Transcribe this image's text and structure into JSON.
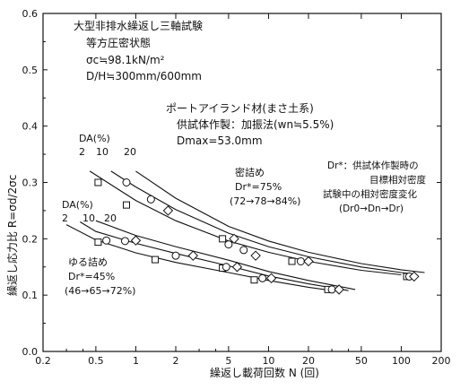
{
  "chart_data": {
    "type": "scatter",
    "x_scale": "log",
    "xlim": [
      0.2,
      200
    ],
    "ylim": [
      0.0,
      0.6
    ],
    "xlabel": "繰返し載荷回数 N (回)",
    "ylabel": "繰返し応力比 R=σd/2σc",
    "x_ticks": [
      "0.2",
      "0.5",
      "1",
      "2",
      "5",
      "10",
      "20",
      "50",
      "100",
      "200"
    ],
    "y_ticks": [
      "0.0",
      "0.1",
      "0.2",
      "0.3",
      "0.4",
      "0.5",
      "0.6"
    ],
    "annotations": {
      "title": "大型非排水繰返し三軸試験",
      "condition": "等方圧密状態",
      "sigma_c": "σc≒98.1kN/m²",
      "dh": "D/H≒300mm/600mm",
      "material": "ポートアイランド材(まさ土系)",
      "prep": "供試体作製：加振法(wn≒5.5%)",
      "dmax": "Dmax=53.0mm",
      "dense_title": "密詰め",
      "dense_dr": "Dr*=75%",
      "dense_range": "(72→78→84%)",
      "loose_title": "ゆる詰め",
      "loose_dr": "Dr*=45%",
      "loose_range": "(46→65→72%)",
      "note1": "Dr*：供試体作製時の",
      "note2": "目標相対密度",
      "note3": "試験中の相対密度変化",
      "note4": "(Dr0→Dn→Dr)",
      "da_upper": "DA(%)",
      "da_lower": "DA(%)",
      "da_upper_vals": [
        "2",
        "10",
        "20"
      ],
      "da_lower_vals": [
        "2",
        "10",
        "20"
      ]
    },
    "series": [
      {
        "marker": "square",
        "points": [
          [
            0.52,
            0.3
          ],
          [
            0.85,
            0.26
          ],
          [
            4.5,
            0.2
          ],
          [
            15.0,
            0.16
          ],
          [
            110.0,
            0.133
          ]
        ]
      },
      {
        "marker": "circle",
        "points": [
          [
            0.85,
            0.3
          ],
          [
            1.3,
            0.27
          ],
          [
            5.0,
            0.19
          ],
          [
            6.5,
            0.18
          ],
          [
            17.5,
            0.16
          ],
          [
            115.0,
            0.133
          ]
        ]
      },
      {
        "marker": "diamond",
        "points": [
          [
            1.75,
            0.25
          ],
          [
            5.5,
            0.2
          ],
          [
            8.0,
            0.17
          ],
          [
            20.0,
            0.16
          ],
          [
            125.0,
            0.133
          ]
        ]
      },
      {
        "marker": "square",
        "points": [
          [
            0.52,
            0.194
          ],
          [
            1.4,
            0.163
          ],
          [
            4.5,
            0.148
          ],
          [
            7.8,
            0.127
          ],
          [
            28.0,
            0.11
          ]
        ]
      },
      {
        "marker": "circle",
        "points": [
          [
            0.6,
            0.197
          ],
          [
            0.83,
            0.196
          ],
          [
            2.0,
            0.17
          ],
          [
            4.8,
            0.15
          ],
          [
            9.0,
            0.13
          ],
          [
            30.0,
            0.11
          ]
        ]
      },
      {
        "marker": "diamond",
        "points": [
          [
            1.0,
            0.197
          ],
          [
            2.7,
            0.17
          ],
          [
            5.8,
            0.15
          ],
          [
            10.5,
            0.13
          ],
          [
            34.0,
            0.11
          ]
        ]
      }
    ],
    "curves": [
      {
        "group": "dense",
        "points": [
          [
            0.45,
            0.32
          ],
          [
            1,
            0.268
          ],
          [
            2,
            0.232
          ],
          [
            5,
            0.196
          ],
          [
            10,
            0.176
          ],
          [
            20,
            0.16
          ],
          [
            50,
            0.144
          ],
          [
            100,
            0.136
          ]
        ]
      },
      {
        "group": "dense",
        "points": [
          [
            0.65,
            0.32
          ],
          [
            1,
            0.292
          ],
          [
            2,
            0.252
          ],
          [
            5,
            0.21
          ],
          [
            10,
            0.186
          ],
          [
            20,
            0.168
          ],
          [
            50,
            0.15
          ],
          [
            100,
            0.14
          ],
          [
            130,
            0.137
          ]
        ]
      },
      {
        "group": "dense",
        "points": [
          [
            1.0,
            0.32
          ],
          [
            2,
            0.272
          ],
          [
            5,
            0.222
          ],
          [
            10,
            0.196
          ],
          [
            20,
            0.176
          ],
          [
            50,
            0.156
          ],
          [
            100,
            0.145
          ],
          [
            150,
            0.14
          ]
        ]
      },
      {
        "group": "loose",
        "points": [
          [
            0.3,
            0.225
          ],
          [
            0.5,
            0.198
          ],
          [
            1,
            0.175
          ],
          [
            2,
            0.158
          ],
          [
            5,
            0.14
          ],
          [
            10,
            0.126
          ],
          [
            20,
            0.114
          ],
          [
            30,
            0.108
          ]
        ]
      },
      {
        "group": "loose",
        "points": [
          [
            0.38,
            0.23
          ],
          [
            0.5,
            0.213
          ],
          [
            1,
            0.192
          ],
          [
            2,
            0.174
          ],
          [
            5,
            0.152
          ],
          [
            10,
            0.134
          ],
          [
            20,
            0.12
          ],
          [
            40,
            0.108
          ]
        ]
      },
      {
        "group": "loose",
        "points": [
          [
            0.5,
            0.232
          ],
          [
            1,
            0.206
          ],
          [
            2,
            0.186
          ],
          [
            5,
            0.162
          ],
          [
            10,
            0.142
          ],
          [
            20,
            0.126
          ],
          [
            45,
            0.11
          ]
        ]
      }
    ]
  }
}
